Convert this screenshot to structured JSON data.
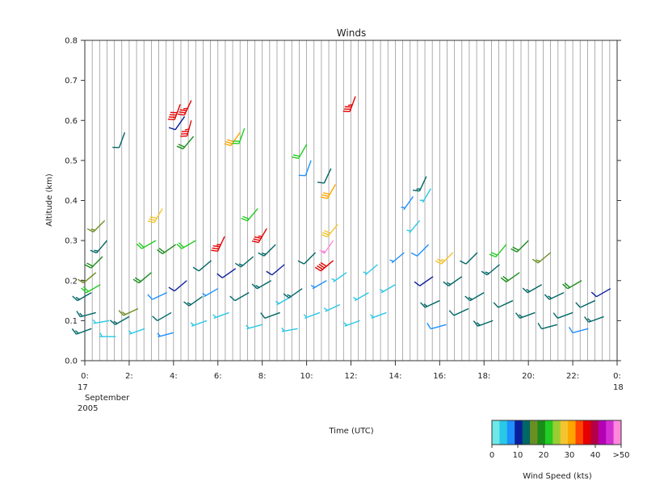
{
  "chart_data": {
    "type": "wind-barb",
    "title": "Winds",
    "ylabel": "Altitude (km)",
    "xlabel": "Time (UTC)",
    "ylim": [
      0.0,
      0.8
    ],
    "xlim": [
      0,
      24
    ],
    "grid": "vertical lines every 20 minutes",
    "yticks": [
      {
        "value": 0.0,
        "label": "0.0"
      },
      {
        "value": 0.1,
        "label": "0.1"
      },
      {
        "value": 0.2,
        "label": "0.2"
      },
      {
        "value": 0.3,
        "label": "0.3"
      },
      {
        "value": 0.4,
        "label": "0.4"
      },
      {
        "value": 0.5,
        "label": "0.5"
      },
      {
        "value": 0.6,
        "label": "0.6"
      },
      {
        "value": 0.7,
        "label": "0.7"
      },
      {
        "value": 0.8,
        "label": "0.8"
      }
    ],
    "xticks": [
      {
        "value": 0,
        "label": "0:"
      },
      {
        "value": 2,
        "label": "2:"
      },
      {
        "value": 4,
        "label": "4:"
      },
      {
        "value": 6,
        "label": "6:"
      },
      {
        "value": 8,
        "label": "8:"
      },
      {
        "value": 10,
        "label": "10:"
      },
      {
        "value": 12,
        "label": "12:"
      },
      {
        "value": 14,
        "label": "14:"
      },
      {
        "value": 16,
        "label": "16:"
      },
      {
        "value": 18,
        "label": "18:"
      },
      {
        "value": 20,
        "label": "20:"
      },
      {
        "value": 22,
        "label": "22:"
      },
      {
        "value": 24,
        "label": "0:"
      }
    ],
    "date_start": {
      "day": "17",
      "month": "September",
      "year": "2005"
    },
    "date_end": {
      "day": "18"
    },
    "colorbar": {
      "label": "Wind Speed (kts)",
      "colors": [
        "#6ee8e8",
        "#28c8e6",
        "#1e90ff",
        "#0a1e9c",
        "#006666",
        "#6b8e23",
        "#1a8c1a",
        "#22cc22",
        "#9acd32",
        "#f4c430",
        "#ffa500",
        "#ff4500",
        "#e60000",
        "#b40046",
        "#b400b4",
        "#d22fd2",
        "#ff88dd"
      ],
      "tick_labels": [
        {
          "value": 0,
          "label": "0"
        },
        {
          "value": 10,
          "label": "10"
        },
        {
          "value": 20,
          "label": "20"
        },
        {
          "value": 30,
          "label": "30"
        },
        {
          "value": 40,
          "label": "40"
        },
        {
          "value": 50,
          "label": ">50"
        }
      ],
      "range": [
        0,
        50
      ]
    },
    "barbs": [
      {
        "t": 0.3,
        "alt": 0.08,
        "spd": 14,
        "dir": 250
      },
      {
        "t": 0.5,
        "alt": 0.12,
        "spd": 13,
        "dir": 255
      },
      {
        "t": 0.3,
        "alt": 0.17,
        "spd": 14,
        "dir": 240
      },
      {
        "t": 0.5,
        "alt": 0.22,
        "spd": 17,
        "dir": 230
      },
      {
        "t": 0.8,
        "alt": 0.26,
        "spd": 18,
        "dir": 225
      },
      {
        "t": 1.0,
        "alt": 0.3,
        "spd": 13,
        "dir": 220
      },
      {
        "t": 0.9,
        "alt": 0.35,
        "spd": 16,
        "dir": 225
      },
      {
        "t": 0.7,
        "alt": 0.19,
        "spd": 22,
        "dir": 240
      },
      {
        "t": 1.1,
        "alt": 0.1,
        "spd": 4,
        "dir": 260
      },
      {
        "t": 1.4,
        "alt": 0.06,
        "spd": 3,
        "dir": 270
      },
      {
        "t": 1.8,
        "alt": 0.57,
        "spd": 12,
        "dir": 200
      },
      {
        "t": 2.0,
        "alt": 0.11,
        "spd": 13,
        "dir": 240
      },
      {
        "t": 2.4,
        "alt": 0.13,
        "spd": 16,
        "dir": 245
      },
      {
        "t": 2.7,
        "alt": 0.08,
        "spd": 5,
        "dir": 250
      },
      {
        "t": 3.0,
        "alt": 0.22,
        "spd": 19,
        "dir": 230
      },
      {
        "t": 3.2,
        "alt": 0.3,
        "spd": 21,
        "dir": 240
      },
      {
        "t": 3.5,
        "alt": 0.38,
        "spd": 28,
        "dir": 210
      },
      {
        "t": 3.7,
        "alt": 0.17,
        "spd": 8,
        "dir": 245
      },
      {
        "t": 3.9,
        "alt": 0.12,
        "spd": 12,
        "dir": 240
      },
      {
        "t": 4.0,
        "alt": 0.07,
        "spd": 6,
        "dir": 255
      },
      {
        "t": 4.1,
        "alt": 0.29,
        "spd": 18,
        "dir": 235
      },
      {
        "t": 4.3,
        "alt": 0.64,
        "spd": 38,
        "dir": 200
      },
      {
        "t": 4.5,
        "alt": 0.61,
        "spd": 10,
        "dir": 215
      },
      {
        "t": 4.8,
        "alt": 0.6,
        "spd": 37,
        "dir": 195
      },
      {
        "t": 4.9,
        "alt": 0.56,
        "spd": 20,
        "dir": 220
      },
      {
        "t": 4.8,
        "alt": 0.65,
        "spd": 36,
        "dir": 205
      },
      {
        "t": 4.6,
        "alt": 0.2,
        "spd": 9,
        "dir": 230
      },
      {
        "t": 5.0,
        "alt": 0.3,
        "spd": 21,
        "dir": 240
      },
      {
        "t": 5.3,
        "alt": 0.16,
        "spd": 13,
        "dir": 235
      },
      {
        "t": 5.5,
        "alt": 0.1,
        "spd": 4,
        "dir": 250
      },
      {
        "t": 5.7,
        "alt": 0.25,
        "spd": 12,
        "dir": 230
      },
      {
        "t": 6.0,
        "alt": 0.18,
        "spd": 6,
        "dir": 240
      },
      {
        "t": 6.3,
        "alt": 0.31,
        "spd": 37,
        "dir": 205
      },
      {
        "t": 6.5,
        "alt": 0.12,
        "spd": 5,
        "dir": 250
      },
      {
        "t": 6.8,
        "alt": 0.23,
        "spd": 10,
        "dir": 235
      },
      {
        "t": 7.0,
        "alt": 0.57,
        "spd": 30,
        "dir": 215
      },
      {
        "t": 7.2,
        "alt": 0.58,
        "spd": 22,
        "dir": 200
      },
      {
        "t": 7.4,
        "alt": 0.17,
        "spd": 12,
        "dir": 240
      },
      {
        "t": 7.6,
        "alt": 0.26,
        "spd": 13,
        "dir": 230
      },
      {
        "t": 7.8,
        "alt": 0.38,
        "spd": 21,
        "dir": 220
      },
      {
        "t": 8.0,
        "alt": 0.09,
        "spd": 4,
        "dir": 255
      },
      {
        "t": 8.2,
        "alt": 0.33,
        "spd": 36,
        "dir": 210
      },
      {
        "t": 8.4,
        "alt": 0.2,
        "spd": 13,
        "dir": 240
      },
      {
        "t": 8.6,
        "alt": 0.29,
        "spd": 14,
        "dir": 225
      },
      {
        "t": 8.8,
        "alt": 0.12,
        "spd": 12,
        "dir": 250
      },
      {
        "t": 9.0,
        "alt": 0.24,
        "spd": 11,
        "dir": 230
      },
      {
        "t": 9.3,
        "alt": 0.16,
        "spd": 5,
        "dir": 240
      },
      {
        "t": 9.6,
        "alt": 0.08,
        "spd": 3,
        "dir": 260
      },
      {
        "t": 9.8,
        "alt": 0.18,
        "spd": 13,
        "dir": 235
      },
      {
        "t": 10.0,
        "alt": 0.54,
        "spd": 22,
        "dir": 210
      },
      {
        "t": 10.2,
        "alt": 0.5,
        "spd": 8,
        "dir": 200
      },
      {
        "t": 10.4,
        "alt": 0.27,
        "spd": 12,
        "dir": 225
      },
      {
        "t": 10.6,
        "alt": 0.12,
        "spd": 4,
        "dir": 250
      },
      {
        "t": 10.9,
        "alt": 0.2,
        "spd": 6,
        "dir": 240
      },
      {
        "t": 11.1,
        "alt": 0.48,
        "spd": 12,
        "dir": 205
      },
      {
        "t": 11.3,
        "alt": 0.44,
        "spd": 31,
        "dir": 210
      },
      {
        "t": 11.2,
        "alt": 0.3,
        "spd": 48,
        "dir": 215
      },
      {
        "t": 11.4,
        "alt": 0.34,
        "spd": 28,
        "dir": 220
      },
      {
        "t": 11.2,
        "alt": 0.25,
        "spd": 38,
        "dir": 230
      },
      {
        "t": 11.5,
        "alt": 0.14,
        "spd": 4,
        "dir": 245
      },
      {
        "t": 11.8,
        "alt": 0.22,
        "spd": 5,
        "dir": 235
      },
      {
        "t": 12.2,
        "alt": 0.66,
        "spd": 36,
        "dir": 200
      },
      {
        "t": 12.4,
        "alt": 0.1,
        "spd": 3,
        "dir": 250
      },
      {
        "t": 12.8,
        "alt": 0.17,
        "spd": 4,
        "dir": 240
      },
      {
        "t": 13.2,
        "alt": 0.24,
        "spd": 5,
        "dir": 230
      },
      {
        "t": 13.6,
        "alt": 0.12,
        "spd": 4,
        "dir": 250
      },
      {
        "t": 14.0,
        "alt": 0.19,
        "spd": 5,
        "dir": 240
      },
      {
        "t": 14.4,
        "alt": 0.27,
        "spd": 6,
        "dir": 230
      },
      {
        "t": 14.8,
        "alt": 0.41,
        "spd": 6,
        "dir": 215
      },
      {
        "t": 15.1,
        "alt": 0.35,
        "spd": 5,
        "dir": 220
      },
      {
        "t": 15.4,
        "alt": 0.46,
        "spd": 13,
        "dir": 205
      },
      {
        "t": 15.6,
        "alt": 0.43,
        "spd": 5,
        "dir": 210
      },
      {
        "t": 15.5,
        "alt": 0.29,
        "spd": 8,
        "dir": 225
      },
      {
        "t": 15.7,
        "alt": 0.21,
        "spd": 9,
        "dir": 235
      },
      {
        "t": 16.0,
        "alt": 0.15,
        "spd": 13,
        "dir": 245
      },
      {
        "t": 16.3,
        "alt": 0.09,
        "spd": 8,
        "dir": 255
      },
      {
        "t": 16.6,
        "alt": 0.27,
        "spd": 27,
        "dir": 225
      },
      {
        "t": 17.0,
        "alt": 0.21,
        "spd": 13,
        "dir": 235
      },
      {
        "t": 17.3,
        "alt": 0.13,
        "spd": 12,
        "dir": 245
      },
      {
        "t": 17.7,
        "alt": 0.27,
        "spd": 12,
        "dir": 225
      },
      {
        "t": 18.0,
        "alt": 0.17,
        "spd": 14,
        "dir": 240
      },
      {
        "t": 18.4,
        "alt": 0.1,
        "spd": 13,
        "dir": 250
      },
      {
        "t": 18.7,
        "alt": 0.24,
        "spd": 14,
        "dir": 230
      },
      {
        "t": 19.0,
        "alt": 0.29,
        "spd": 22,
        "dir": 220
      },
      {
        "t": 19.3,
        "alt": 0.15,
        "spd": 12,
        "dir": 245
      },
      {
        "t": 19.6,
        "alt": 0.22,
        "spd": 20,
        "dir": 235
      },
      {
        "t": 20.0,
        "alt": 0.3,
        "spd": 19,
        "dir": 225
      },
      {
        "t": 20.3,
        "alt": 0.12,
        "spd": 13,
        "dir": 250
      },
      {
        "t": 20.6,
        "alt": 0.19,
        "spd": 14,
        "dir": 240
      },
      {
        "t": 21.0,
        "alt": 0.27,
        "spd": 17,
        "dir": 230
      },
      {
        "t": 21.3,
        "alt": 0.09,
        "spd": 12,
        "dir": 255
      },
      {
        "t": 21.6,
        "alt": 0.17,
        "spd": 13,
        "dir": 245
      },
      {
        "t": 22.0,
        "alt": 0.12,
        "spd": 12,
        "dir": 250
      },
      {
        "t": 22.4,
        "alt": 0.2,
        "spd": 18,
        "dir": 240
      },
      {
        "t": 22.7,
        "alt": 0.08,
        "spd": 8,
        "dir": 255
      },
      {
        "t": 23.0,
        "alt": 0.15,
        "spd": 12,
        "dir": 245
      },
      {
        "t": 23.4,
        "alt": 0.11,
        "spd": 13,
        "dir": 250
      },
      {
        "t": 23.7,
        "alt": 0.18,
        "spd": 9,
        "dir": 240
      }
    ]
  }
}
